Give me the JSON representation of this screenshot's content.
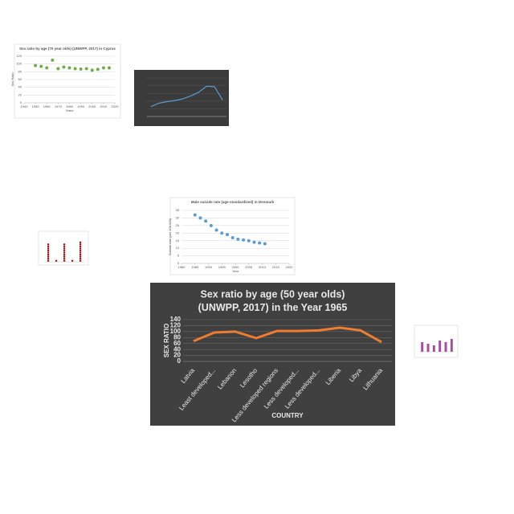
{
  "chart_data": [
    {
      "type": "scatter",
      "title": [
        "Sex ratio by age (70 year olds) (UNWPP, 2017) in Cyprus"
      ],
      "y_label": "Sex Ratio",
      "x_label": "Years",
      "x": [
        1950,
        1955,
        1960,
        1965,
        1970,
        1975,
        1980,
        1985,
        1990,
        1995,
        2000,
        2005,
        2010,
        2015
      ],
      "values": [
        96,
        94,
        90,
        110,
        88,
        92,
        90,
        88,
        87,
        88,
        84,
        86,
        90,
        90
      ],
      "color": "#70ad47",
      "xlim": [
        1940,
        2020
      ],
      "xticks": [
        1940,
        1950,
        1960,
        1970,
        1980,
        1990,
        2000,
        2010,
        2020
      ],
      "ylim": [
        0,
        120
      ],
      "yticks": [
        0,
        20,
        40,
        60,
        80,
        100,
        120
      ],
      "grid": true
    },
    {
      "type": "line",
      "values": [
        18,
        24,
        27,
        29,
        32,
        37,
        44,
        55,
        54,
        30
      ],
      "color": "#5b9bd5",
      "ylim": [
        0,
        70
      ],
      "grid": true
    },
    {
      "type": "dot",
      "values": [
        9,
        1,
        9,
        1,
        10
      ],
      "color": "#c00000",
      "ylim": [
        0,
        11
      ]
    },
    {
      "type": "scatter",
      "title": [
        "Male suicide rate (age-standardized) in Denmark"
      ],
      "y_label": "Suicide rate (per 100,000)",
      "x_label": "Year",
      "x": [
        1985,
        1987,
        1989,
        1991,
        1993,
        1995,
        1997,
        1999,
        2001,
        2003,
        2005,
        2007,
        2009,
        2011
      ],
      "values": [
        32,
        30,
        28,
        25,
        22,
        20,
        19,
        17,
        16,
        15.5,
        15,
        14,
        13.5,
        13
      ],
      "color": "#5b9bd5",
      "xlim": [
        1980,
        2020
      ],
      "xticks": [
        1980,
        1985,
        1990,
        1995,
        2000,
        2005,
        2010,
        2015,
        2020
      ],
      "ylim": [
        0,
        35
      ],
      "yticks": [
        0,
        5,
        10,
        15,
        20,
        25,
        30,
        35
      ],
      "grid": true
    },
    {
      "type": "line",
      "title": [
        "Sex ratio by age (50 year olds)",
        "(UNWPP, 2017) in the Year 1965"
      ],
      "y_label": "SEX RATIO",
      "x_label": "COUNTRY",
      "categories": [
        "Latvia",
        "Least developed...",
        "Lebanon",
        "Lesotho",
        "Less developed regions",
        "Less developed...",
        "Less developed...",
        "Liberia",
        "Libya",
        "Lithuania"
      ],
      "values": [
        68,
        97,
        100,
        78,
        102,
        102,
        104,
        113,
        104,
        65
      ],
      "color": "#ed7d31",
      "ylim": [
        0,
        140
      ],
      "yticks": [
        0,
        20,
        40,
        60,
        80,
        100,
        120,
        140
      ],
      "grid": true
    },
    {
      "type": "bar",
      "values": [
        6,
        5,
        4,
        7,
        6,
        8
      ],
      "color": "#a64d9c",
      "ylim": [
        0,
        10
      ]
    }
  ]
}
